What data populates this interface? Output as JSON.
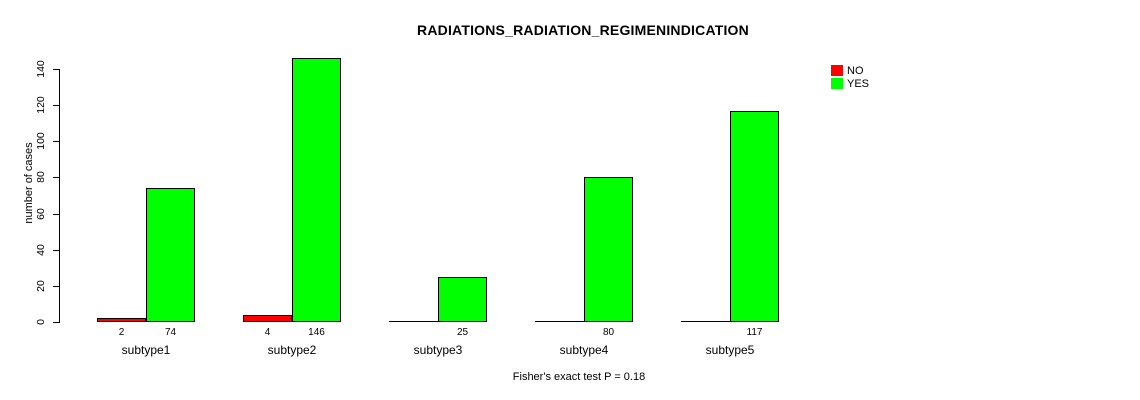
{
  "title": "RADIATIONS_RADIATION_REGIMENINDICATION",
  "footnote": "Fisher's exact test P = 0.18",
  "y_axis": {
    "label": "number of cases",
    "ticks": [
      0,
      20,
      40,
      60,
      80,
      100,
      120,
      140
    ]
  },
  "x_axis": {
    "categories": [
      "subtype1",
      "subtype2",
      "subtype3",
      "subtype4",
      "subtype5"
    ]
  },
  "legend": {
    "position": "top-right",
    "items": [
      {
        "label": "NO",
        "color": "#ff0000"
      },
      {
        "label": "YES",
        "color": "#00ff00"
      }
    ]
  },
  "colors": {
    "no": "#ff0000",
    "yes": "#00ff00",
    "axis": "#000000",
    "background": "#ffffff"
  },
  "chart_data": {
    "type": "bar",
    "title": "RADIATIONS_RADIATION_REGIMENINDICATION",
    "categories": [
      "subtype1",
      "subtype2",
      "subtype3",
      "subtype4",
      "subtype5"
    ],
    "series": [
      {
        "name": "NO",
        "color": "#ff0000",
        "values": [
          2,
          4,
          0,
          0,
          0
        ]
      },
      {
        "name": "YES",
        "color": "#00ff00",
        "values": [
          74,
          146,
          25,
          80,
          117
        ]
      }
    ],
    "bar_value_labels": "shown under each nonzero bar",
    "xlabel": "",
    "ylabel": "number of cases",
    "ylim": [
      0,
      146
    ],
    "yticks": [
      0,
      20,
      40,
      60,
      80,
      100,
      120,
      140
    ],
    "grid": false,
    "legend_position": "top-right",
    "annotation": "Fisher's exact test P = 0.18",
    "style": "grouped bars, black outlines, white background"
  }
}
